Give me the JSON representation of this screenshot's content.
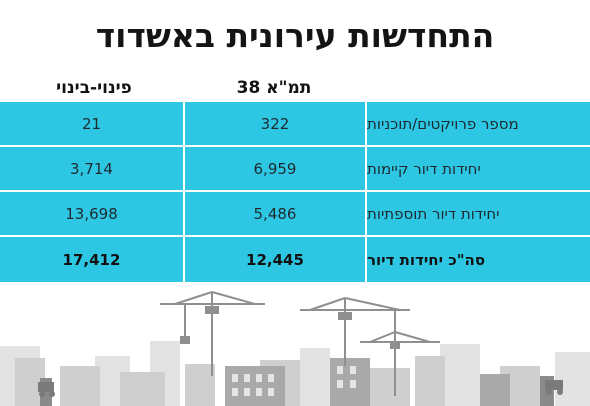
{
  "title": "התחדשות עירונית באשדוד",
  "columns": {
    "tama38": "תמ\"א 38",
    "pinui_binui": "פינוי-בינוי"
  },
  "rows": [
    {
      "label": "מספר פרויקטים/תוכניות",
      "tama38": "322",
      "pinui_binui": "21"
    },
    {
      "label": "יחידות דיור קיימות",
      "tama38": "6,959",
      "pinui_binui": "3,714"
    },
    {
      "label": "יחידות דיור תוספתיות",
      "tama38": "5,486",
      "pinui_binui": "13,698"
    },
    {
      "label": "סה\"כ יחידות דיור",
      "tama38": "12,445",
      "pinui_binui": "17,412"
    }
  ],
  "colors": {
    "row_background": "#2dc7e3",
    "skyline_building": "#d4d4d4",
    "skyline_crane": "#8f8f8f"
  }
}
